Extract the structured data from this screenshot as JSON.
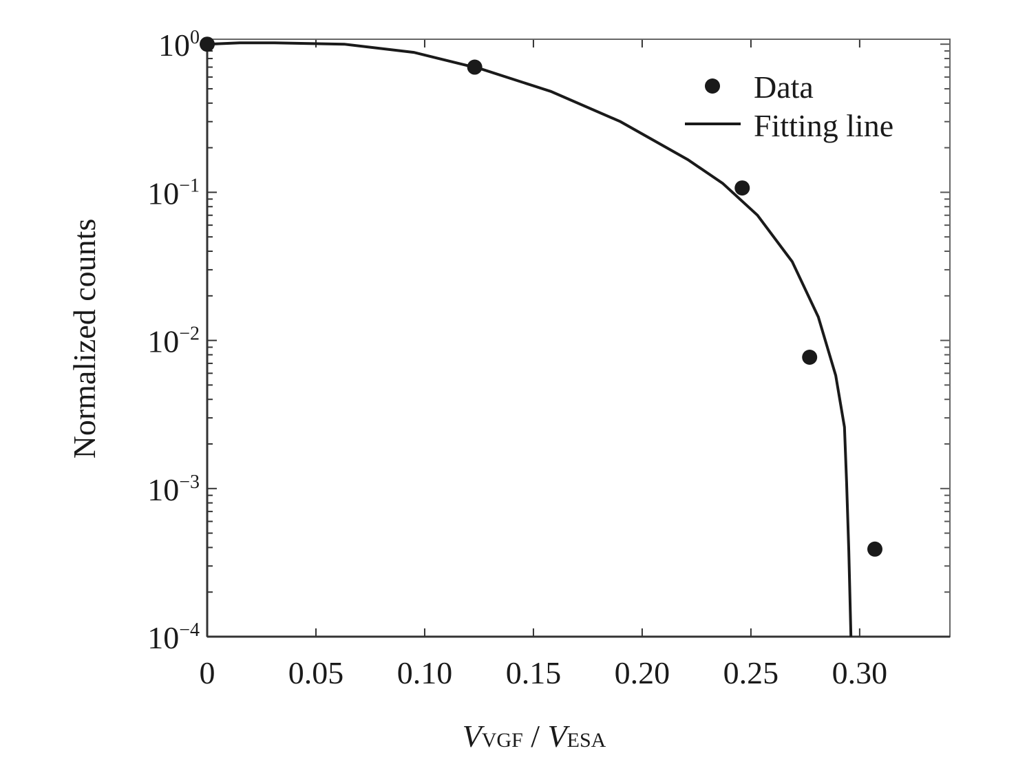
{
  "chart_data": {
    "type": "scatter",
    "title": "",
    "xlabel": {
      "main1": "V",
      "sub1": "VGF",
      "sep": " / ",
      "main2": "V",
      "sub2": "ESA"
    },
    "ylabel": "Normalized counts",
    "xlim": [
      0,
      0.3415
    ],
    "ylim": [
      0.0001,
      1.08
    ],
    "yscale": "log",
    "x_ticks": [
      {
        "value": 0,
        "label": "0"
      },
      {
        "value": 0.05,
        "label": "0.05"
      },
      {
        "value": 0.1,
        "label": "0.10"
      },
      {
        "value": 0.15,
        "label": "0.15"
      },
      {
        "value": 0.2,
        "label": "0.20"
      },
      {
        "value": 0.25,
        "label": "0.25"
      },
      {
        "value": 0.3,
        "label": "0.30"
      }
    ],
    "y_ticks": [
      {
        "value": 1,
        "base": "10",
        "exp": "0"
      },
      {
        "value": 0.1,
        "base": "10",
        "exp": "−1"
      },
      {
        "value": 0.01,
        "base": "10",
        "exp": "−2"
      },
      {
        "value": 0.001,
        "base": "10",
        "exp": "−3"
      },
      {
        "value": 0.0001,
        "base": "10",
        "exp": "−4"
      }
    ],
    "legend": {
      "placement": "top-right",
      "entries": [
        "Data",
        "Fitting line"
      ]
    },
    "series": [
      {
        "name": "Data",
        "kind": "scatter",
        "color": "#1a1a1a",
        "x": [
          0,
          0.123,
          0.246,
          0.277,
          0.307
        ],
        "y": [
          1.0,
          0.7,
          0.107,
          0.0077,
          0.00039
        ]
      },
      {
        "name": "Fitting line",
        "kind": "line",
        "color": "#1a1a1a",
        "x": [
          0,
          0.015,
          0.031,
          0.063,
          0.095,
          0.126,
          0.158,
          0.19,
          0.221,
          0.237,
          0.253,
          0.269,
          0.281,
          0.289,
          0.293,
          0.294,
          0.295,
          0.296
        ],
        "y": [
          1.0,
          1.02,
          1.02,
          1.0,
          0.88,
          0.68,
          0.48,
          0.3,
          0.166,
          0.115,
          0.07,
          0.034,
          0.0144,
          0.0058,
          0.0026,
          0.0011,
          0.00038,
          0.0001
        ]
      }
    ],
    "grid": false
  }
}
